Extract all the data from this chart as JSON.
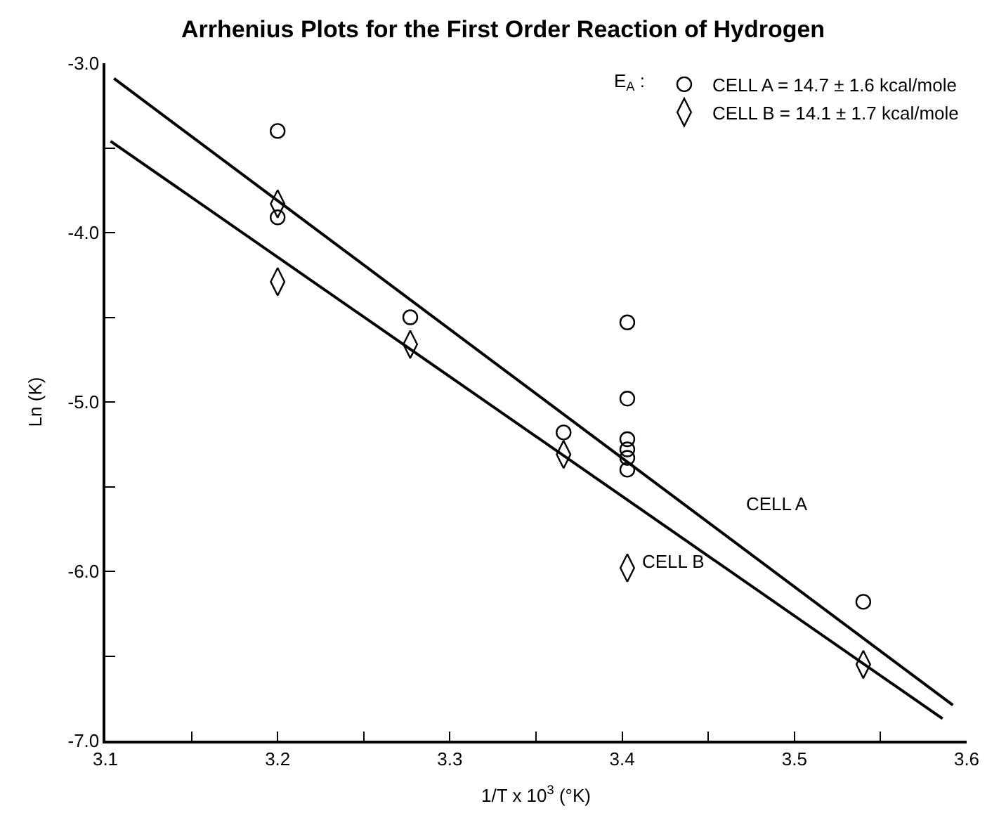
{
  "chart_data": {
    "type": "scatter",
    "title": "Arrhenius Plots for the First Order Reaction of Hydrogen",
    "xlabel": "1/T x 10$^{3}$ (°K)",
    "ylabel": "Ln (K)",
    "legend_title": "E$_{A}$ :",
    "legend": "top right",
    "xlim": [
      3.1,
      3.6
    ],
    "ylim": [
      -7.0,
      -3.0
    ],
    "xticks": [
      3.1,
      {
        "value": 3.15,
        "label": null
      },
      3.2,
      {
        "value": 3.25,
        "label": null
      },
      3.3,
      {
        "value": 3.35,
        "label": null
      },
      3.4,
      {
        "value": 3.45,
        "label": null
      },
      3.5,
      {
        "value": 3.55,
        "label": null
      },
      3.6
    ],
    "yticks": [
      {
        "value": -7,
        "label": "-7.0"
      },
      {
        "value": -6.5,
        "label": null
      },
      {
        "value": -6,
        "label": "-6.0"
      },
      {
        "value": -5.5,
        "label": null
      },
      {
        "value": -5,
        "label": "-5.0"
      },
      {
        "value": -4.5,
        "label": null
      },
      {
        "value": -4,
        "label": "-4.0"
      },
      {
        "value": -3.5,
        "label": null
      },
      {
        "value": -3,
        "label": "-3.0"
      }
    ],
    "series": [
      {
        "name": "CELL A = 14.7 ± 1.6 kcal/mole",
        "color": "#000000",
        "marker": "circle",
        "x": [
          3.2,
          3.2,
          3.277,
          3.366,
          3.403,
          3.403,
          3.403,
          3.403,
          3.403,
          3.403,
          3.54
        ],
        "values": [
          -3.4,
          -3.91,
          -4.5,
          -5.18,
          -4.53,
          -4.98,
          -5.22,
          -5.28,
          -5.33,
          -5.4,
          -6.18
        ]
      },
      {
        "name": "CELL B = 14.1 ± 1.7 kcal/mole",
        "color": "#000000",
        "marker": "diamond",
        "x": [
          3.2,
          3.2,
          3.277,
          3.366,
          3.403,
          3.54
        ],
        "values": [
          -3.83,
          -4.29,
          -4.66,
          -5.31,
          -5.98,
          -6.55
        ]
      },
      {
        "type": "line",
        "color": "#000000",
        "x": [
          3.105,
          3.592
        ],
        "values": [
          -3.09,
          -6.79
        ]
      },
      {
        "type": "line",
        "color": "#000000",
        "x": [
          3.103,
          3.586
        ],
        "values": [
          -3.46,
          -6.87
        ]
      }
    ],
    "annotations": [
      "CELL A",
      "CELL B"
    ]
  }
}
